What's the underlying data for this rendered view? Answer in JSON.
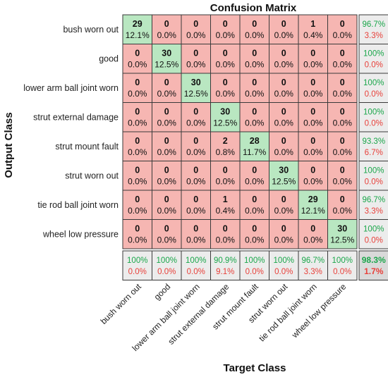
{
  "chart_data": {
    "type": "heatmap",
    "title": "Confusion Matrix",
    "xlabel": "Target Class",
    "ylabel": "Output Class",
    "classes": [
      "bush worn out",
      "good",
      "lower arm ball joint worn",
      "strut external damage",
      "strut mount fault",
      "strut worn out",
      "tie rod ball joint worn",
      "wheel low pressure"
    ],
    "counts": [
      [
        29,
        0,
        0,
        0,
        0,
        0,
        1,
        0
      ],
      [
        0,
        30,
        0,
        0,
        0,
        0,
        0,
        0
      ],
      [
        0,
        0,
        30,
        0,
        0,
        0,
        0,
        0
      ],
      [
        0,
        0,
        0,
        30,
        0,
        0,
        0,
        0
      ],
      [
        0,
        0,
        0,
        2,
        28,
        0,
        0,
        0
      ],
      [
        0,
        0,
        0,
        0,
        0,
        30,
        0,
        0
      ],
      [
        0,
        0,
        0,
        1,
        0,
        0,
        29,
        0
      ],
      [
        0,
        0,
        0,
        0,
        0,
        0,
        0,
        30
      ]
    ],
    "percents": [
      [
        "12.1%",
        "0.0%",
        "0.0%",
        "0.0%",
        "0.0%",
        "0.0%",
        "0.4%",
        "0.0%"
      ],
      [
        "0.0%",
        "12.5%",
        "0.0%",
        "0.0%",
        "0.0%",
        "0.0%",
        "0.0%",
        "0.0%"
      ],
      [
        "0.0%",
        "0.0%",
        "12.5%",
        "0.0%",
        "0.0%",
        "0.0%",
        "0.0%",
        "0.0%"
      ],
      [
        "0.0%",
        "0.0%",
        "0.0%",
        "12.5%",
        "0.0%",
        "0.0%",
        "0.0%",
        "0.0%"
      ],
      [
        "0.0%",
        "0.0%",
        "0.0%",
        "0.8%",
        "11.7%",
        "0.0%",
        "0.0%",
        "0.0%"
      ],
      [
        "0.0%",
        "0.0%",
        "0.0%",
        "0.0%",
        "0.0%",
        "12.5%",
        "0.0%",
        "0.0%"
      ],
      [
        "0.0%",
        "0.0%",
        "0.0%",
        "0.4%",
        "0.0%",
        "0.0%",
        "12.1%",
        "0.0%"
      ],
      [
        "0.0%",
        "0.0%",
        "0.0%",
        "0.0%",
        "0.0%",
        "0.0%",
        "0.0%",
        "12.5%"
      ]
    ],
    "row_summary": [
      [
        "96.7%",
        "3.3%"
      ],
      [
        "100%",
        "0.0%"
      ],
      [
        "100%",
        "0.0%"
      ],
      [
        "100%",
        "0.0%"
      ],
      [
        "93.3%",
        "6.7%"
      ],
      [
        "100%",
        "0.0%"
      ],
      [
        "96.7%",
        "3.3%"
      ],
      [
        "100%",
        "0.0%"
      ]
    ],
    "col_summary": [
      [
        "100%",
        "0.0%"
      ],
      [
        "100%",
        "0.0%"
      ],
      [
        "100%",
        "0.0%"
      ],
      [
        "90.9%",
        "9.1%"
      ],
      [
        "100%",
        "0.0%"
      ],
      [
        "100%",
        "0.0%"
      ],
      [
        "96.7%",
        "3.3%"
      ],
      [
        "100%",
        "0.0%"
      ]
    ],
    "overall": [
      "98.3%",
      "1.7%"
    ],
    "colors": {
      "correct": "#b9e7c1",
      "incorrect": "#f6b6b2",
      "summary": "#ececec",
      "summary_green": "#1aa64a",
      "summary_red": "#e8403a",
      "grid": "#3a3a3a"
    }
  }
}
